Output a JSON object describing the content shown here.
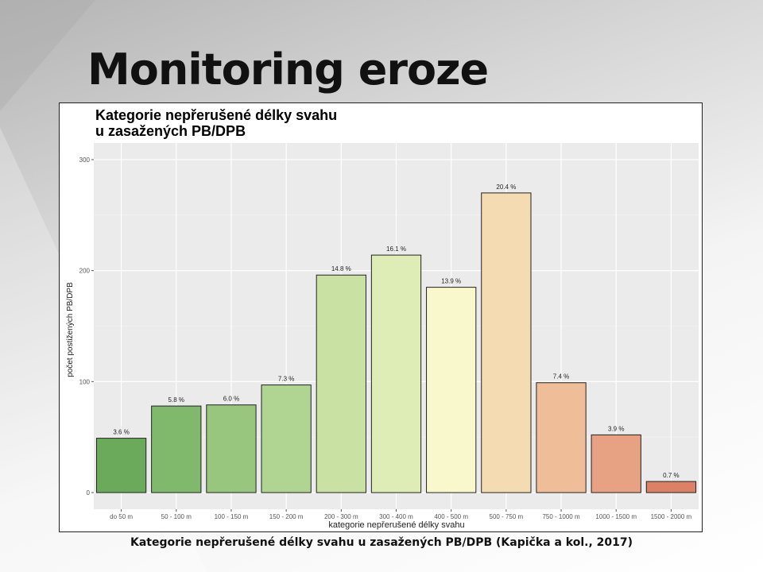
{
  "slide": {
    "title": "Monitoring eroze",
    "caption": "Kategorie nepřerušené délky svahu u zasažených PB/DPB (Kapička a kol., 2017)"
  },
  "chart_data": {
    "type": "bar",
    "title": "Kategorie nepřerušené délky svahu",
    "title_line2": "u zasažených PB/DPB",
    "xlabel": "kategorie nepřerušené délky svahu",
    "ylabel": "počet postižených PB/DPB",
    "ylim": [
      -15,
      315
    ],
    "yticks": [
      0,
      100,
      200,
      300
    ],
    "grid": true,
    "categories": [
      "do 50 m",
      "50 - 100 m",
      "100 - 150 m",
      "150 - 200 m",
      "200 - 300 m",
      "300 - 400 m",
      "400 - 500 m",
      "500 - 750 m",
      "750 - 1000 m",
      "1000 - 1500 m",
      "1500 - 2000 m"
    ],
    "values": [
      49,
      78,
      79,
      97,
      196,
      214,
      185,
      270,
      99,
      52,
      10
    ],
    "labels": [
      "3.6 %",
      "5.8 %",
      "6.0 %",
      "7.3 %",
      "14.8 %",
      "16.1 %",
      "13.9 %",
      "20.4 %",
      "7.4 %",
      "3.9 %",
      "0.7 %"
    ],
    "colors": [
      "#6aaa5a",
      "#80b86c",
      "#98c67e",
      "#b0d491",
      "#c9e2a4",
      "#deecb6",
      "#f9f7cc",
      "#f5dbb1",
      "#efbd97",
      "#e6a283",
      "#dd8166"
    ],
    "panel_background": "#ebebeb"
  }
}
